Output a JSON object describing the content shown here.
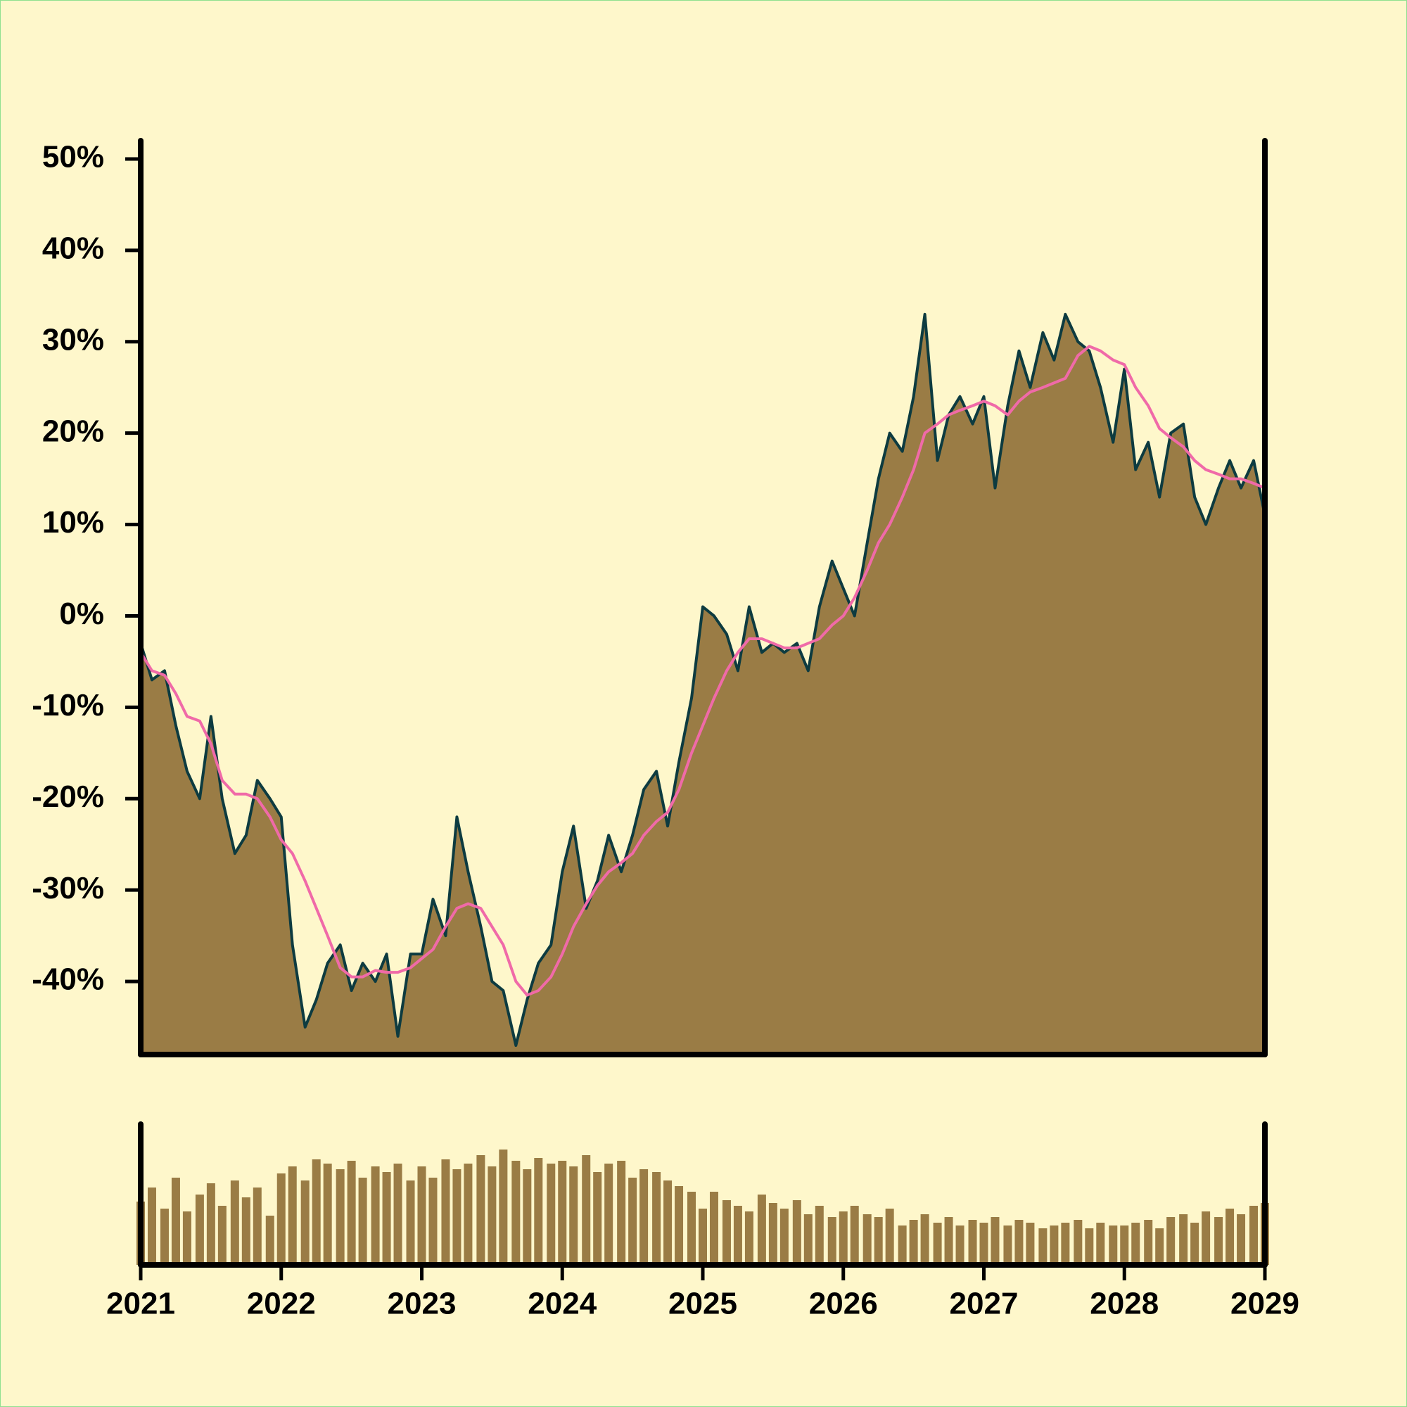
{
  "chart_data": {
    "type": "area",
    "x": [
      2021,
      2021.08,
      2021.17,
      2021.25,
      2021.33,
      2021.42,
      2021.5,
      2021.58,
      2021.67,
      2021.75,
      2021.83,
      2021.92,
      2022,
      2022.08,
      2022.17,
      2022.25,
      2022.33,
      2022.42,
      2022.5,
      2022.58,
      2022.67,
      2022.75,
      2022.83,
      2022.92,
      2023,
      2023.08,
      2023.17,
      2023.25,
      2023.33,
      2023.42,
      2023.5,
      2023.58,
      2023.67,
      2023.75,
      2023.83,
      2023.92,
      2024,
      2024.08,
      2024.17,
      2024.25,
      2024.33,
      2024.42,
      2024.5,
      2024.58,
      2024.67,
      2024.75,
      2024.83,
      2024.92,
      2025,
      2025.08,
      2025.17,
      2025.25,
      2025.33,
      2025.42,
      2025.5,
      2025.58,
      2025.67,
      2025.75,
      2025.83,
      2025.92,
      2026,
      2026.08,
      2026.17,
      2026.25,
      2026.33,
      2026.42,
      2026.5,
      2026.58,
      2026.67,
      2026.75,
      2026.83,
      2026.92,
      2027,
      2027.08,
      2027.17,
      2027.25,
      2027.33,
      2027.42,
      2027.5,
      2027.58,
      2027.67,
      2027.75,
      2027.83,
      2027.92,
      2028,
      2028.08,
      2028.17,
      2028.25,
      2028.33,
      2028.42,
      2028.5,
      2028.58,
      2028.67,
      2028.75,
      2028.83,
      2028.92,
      2029
    ],
    "series": [
      {
        "color": "#0d3b40",
        "fill": "#9a7c45",
        "values": [
          -3,
          -7,
          -6,
          -12,
          -17,
          -20,
          -11,
          -20,
          -26,
          -24,
          -18,
          -20,
          -22,
          -36,
          -45,
          -42,
          -38,
          -36,
          -41,
          -38,
          -40,
          -37,
          -46,
          -37,
          -37,
          -31,
          -35,
          -22,
          -28,
          -34,
          -40,
          -41,
          -47,
          -42,
          -38,
          -36,
          -28,
          -23,
          -32,
          -29,
          -24,
          -28,
          -24,
          -19,
          -17,
          -23,
          -16,
          -9,
          1,
          0,
          -2,
          -6,
          1,
          -4,
          -3,
          -4,
          -3,
          -6,
          1,
          6,
          3,
          0,
          8,
          15,
          20,
          18,
          24,
          33,
          17,
          22,
          24,
          21,
          24,
          14,
          23,
          29,
          25,
          31,
          28,
          33,
          30,
          29,
          25,
          19,
          27,
          16,
          19,
          13,
          20,
          21,
          13,
          10,
          14,
          17,
          14,
          17,
          11
        ]
      },
      {
        "color": "#f06aa8",
        "values": [
          -4,
          -6,
          -6.5,
          -8.5,
          -11,
          -11.5,
          -14,
          -18,
          -19.5,
          -19.5,
          -20,
          -22,
          -24.5,
          -26,
          -29,
          -32,
          -35,
          -38.5,
          -39.5,
          -39.5,
          -38.8,
          -39,
          -39,
          -38.5,
          -37.5,
          -36.5,
          -34,
          -32,
          -31.5,
          -32,
          -34,
          -36,
          -40,
          -41.5,
          -41,
          -39.5,
          -37,
          -34,
          -31.5,
          -29.5,
          -28,
          -27,
          -26,
          -24,
          -22.5,
          -21.5,
          -19,
          -15,
          -12,
          -9,
          -6,
          -4,
          -2.5,
          -2.5,
          -3,
          -3.5,
          -3.5,
          -3,
          -2.5,
          -1,
          0,
          2,
          5,
          8,
          10,
          13,
          16,
          20,
          21,
          22,
          22.5,
          23,
          23.5,
          23,
          22,
          23.5,
          24.5,
          25,
          25.5,
          26,
          28.5,
          29.5,
          29,
          28,
          27.5,
          25,
          23,
          20.5,
          19.5,
          18.5,
          17,
          16,
          15.5,
          15,
          15,
          14.5,
          14
        ]
      }
    ],
    "volume": {
      "color": "#9a7c45",
      "ylim": [
        0,
        100
      ],
      "values": [
        45,
        55,
        40,
        62,
        38,
        50,
        58,
        42,
        60,
        48,
        55,
        35,
        65,
        70,
        60,
        75,
        72,
        68,
        74,
        62,
        70,
        66,
        72,
        60,
        70,
        62,
        75,
        68,
        72,
        78,
        70,
        82,
        74,
        68,
        76,
        72,
        74,
        70,
        78,
        66,
        72,
        74,
        62,
        68,
        66,
        60,
        56,
        52,
        40,
        52,
        46,
        42,
        38,
        50,
        44,
        40,
        46,
        36,
        42,
        34,
        38,
        42,
        36,
        34,
        40,
        28,
        32,
        36,
        30,
        34,
        28,
        32,
        30,
        34,
        28,
        32,
        30,
        26,
        28,
        30,
        32,
        26,
        30,
        28,
        28,
        30,
        32,
        26,
        34,
        36,
        30,
        38,
        34,
        40,
        36,
        42,
        44
      ]
    },
    "xlim": [
      2021,
      2029
    ],
    "xticks": [
      2021,
      2022,
      2023,
      2024,
      2025,
      2026,
      2027,
      2028,
      2029
    ],
    "ylim": [
      -48,
      52
    ],
    "yticks": [
      {
        "value": 50,
        "label": "50%"
      },
      {
        "value": 40,
        "label": "40%"
      },
      {
        "value": 30,
        "label": "30%"
      },
      {
        "value": 20,
        "label": "20%"
      },
      {
        "value": 10,
        "label": "10%"
      },
      {
        "value": 0,
        "label": "0%"
      },
      {
        "value": -10,
        "label": "-10%"
      },
      {
        "value": -20,
        "label": "-20%"
      },
      {
        "value": -30,
        "label": "-30%"
      },
      {
        "value": -40,
        "label": "-40%"
      }
    ]
  }
}
